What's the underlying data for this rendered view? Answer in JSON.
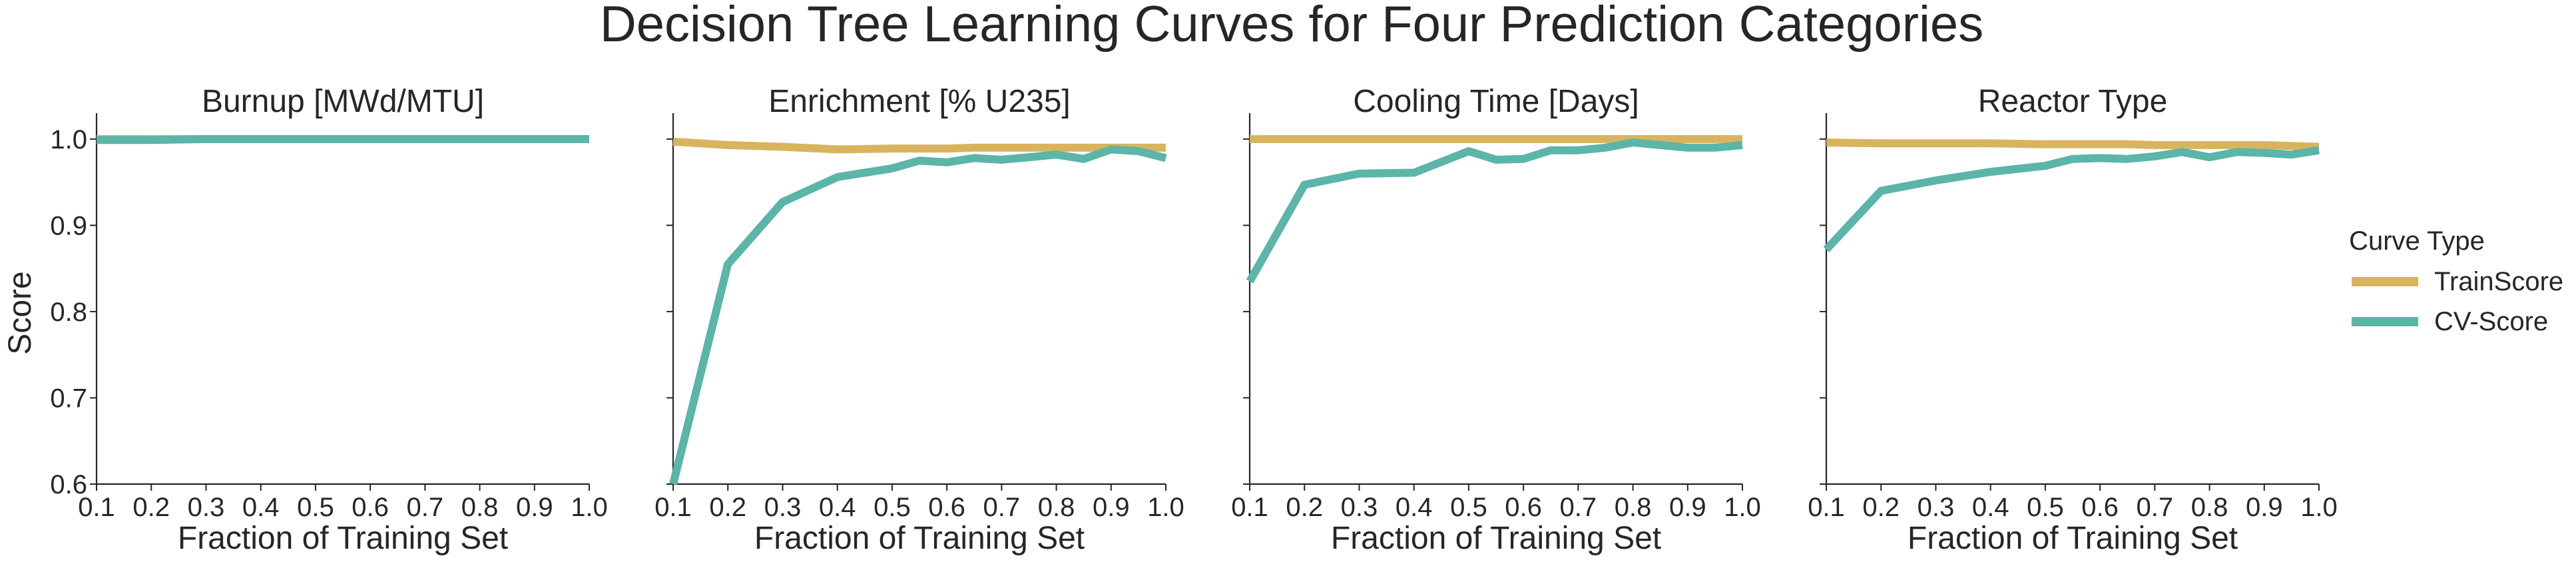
{
  "title": "Decision Tree Learning Curves for Four Prediction Categories",
  "colors": {
    "TrainScore": "#d8b45f",
    "CV-Score": "#5bb5a9"
  },
  "legend": {
    "title": "Curve Type",
    "placement": "right",
    "entries": [
      {
        "name": "TrainScore",
        "color": "#d8b45f"
      },
      {
        "name": "CV-Score",
        "color": "#5bb5a9"
      }
    ]
  },
  "ylabel": "Score",
  "chart_data": [
    {
      "type": "line",
      "title": "Burnup [MWd/MTU]",
      "xlabel": "Fraction of Training Set",
      "ylabel": "Score",
      "xlim": [
        0.1,
        1.0
      ],
      "ylim": [
        0.6,
        1.03
      ],
      "xticks": [
        "0.1",
        "0.2",
        "0.3",
        "0.4",
        "0.5",
        "0.6",
        "0.7",
        "0.8",
        "0.9",
        "1.0"
      ],
      "yticks": [
        "0.6",
        "0.7",
        "0.8",
        "0.9",
        "1.0"
      ],
      "grid": false,
      "x": [
        0.1,
        0.2,
        0.3,
        0.4,
        0.5,
        0.6,
        0.7,
        0.8,
        0.9,
        1.0
      ],
      "series": [
        {
          "name": "TrainScore",
          "values": [
            1.0,
            1.0,
            1.0,
            1.0,
            1.0,
            1.0,
            1.0,
            1.0,
            1.0,
            1.0
          ]
        },
        {
          "name": "CV-Score",
          "values": [
            0.999,
            0.999,
            1.0,
            1.0,
            1.0,
            1.0,
            1.0,
            1.0,
            1.0,
            1.0
          ]
        }
      ]
    },
    {
      "type": "line",
      "title": "Enrichment [% U235]",
      "xlabel": "Fraction of Training Set",
      "xlim": [
        0.1,
        1.0
      ],
      "ylim": [
        0.6,
        1.03
      ],
      "xticks": [
        "0.1",
        "0.2",
        "0.3",
        "0.4",
        "0.5",
        "0.6",
        "0.7",
        "0.8",
        "0.9",
        "1.0"
      ],
      "yticks": [],
      "grid": false,
      "x": [
        0.1,
        0.2,
        0.3,
        0.4,
        0.5,
        0.55,
        0.6,
        0.65,
        0.7,
        0.75,
        0.8,
        0.85,
        0.9,
        0.95,
        1.0
      ],
      "series": [
        {
          "name": "TrainScore",
          "values": [
            0.997,
            0.993,
            0.991,
            0.988,
            0.989,
            0.989,
            0.989,
            0.99,
            0.99,
            0.99,
            0.99,
            0.99,
            0.99,
            0.99,
            0.99
          ]
        },
        {
          "name": "CV-Score",
          "values": [
            0.6,
            0.855,
            0.927,
            0.956,
            0.966,
            0.975,
            0.973,
            0.978,
            0.976,
            0.979,
            0.982,
            0.977,
            0.988,
            0.986,
            0.978
          ]
        }
      ]
    },
    {
      "type": "line",
      "title": "Cooling Time [Days]",
      "xlabel": "Fraction of Training Set",
      "xlim": [
        0.1,
        1.0
      ],
      "ylim": [
        0.6,
        1.03
      ],
      "xticks": [
        "0.1",
        "0.2",
        "0.3",
        "0.4",
        "0.5",
        "0.6",
        "0.7",
        "0.8",
        "0.9",
        "1.0"
      ],
      "yticks": [],
      "grid": false,
      "x": [
        0.1,
        0.2,
        0.3,
        0.4,
        0.5,
        0.55,
        0.6,
        0.65,
        0.7,
        0.75,
        0.8,
        0.85,
        0.9,
        0.95,
        1.0
      ],
      "series": [
        {
          "name": "TrainScore",
          "values": [
            1.0,
            1.0,
            1.0,
            1.0,
            1.0,
            1.0,
            1.0,
            1.0,
            1.0,
            1.0,
            1.0,
            1.0,
            1.0,
            1.0,
            1.0
          ]
        },
        {
          "name": "CV-Score",
          "values": [
            0.835,
            0.947,
            0.96,
            0.961,
            0.986,
            0.976,
            0.977,
            0.987,
            0.987,
            0.99,
            0.996,
            0.993,
            0.99,
            0.99,
            0.993
          ]
        }
      ]
    },
    {
      "type": "line",
      "title": "Reactor Type",
      "xlabel": "Fraction of Training Set",
      "xlim": [
        0.1,
        1.0
      ],
      "ylim": [
        0.6,
        1.03
      ],
      "xticks": [
        "0.1",
        "0.2",
        "0.3",
        "0.4",
        "0.5",
        "0.6",
        "0.7",
        "0.8",
        "0.9",
        "1.0"
      ],
      "yticks": [],
      "grid": false,
      "x": [
        0.1,
        0.2,
        0.3,
        0.4,
        0.5,
        0.55,
        0.6,
        0.65,
        0.7,
        0.75,
        0.8,
        0.85,
        0.9,
        0.95,
        1.0
      ],
      "series": [
        {
          "name": "TrainScore",
          "values": [
            0.996,
            0.995,
            0.995,
            0.995,
            0.994,
            0.994,
            0.994,
            0.994,
            0.993,
            0.993,
            0.993,
            0.993,
            0.993,
            0.992,
            0.991
          ]
        },
        {
          "name": "CV-Score",
          "values": [
            0.872,
            0.94,
            0.952,
            0.962,
            0.969,
            0.977,
            0.978,
            0.977,
            0.98,
            0.985,
            0.979,
            0.985,
            0.984,
            0.982,
            0.987
          ]
        }
      ]
    }
  ]
}
